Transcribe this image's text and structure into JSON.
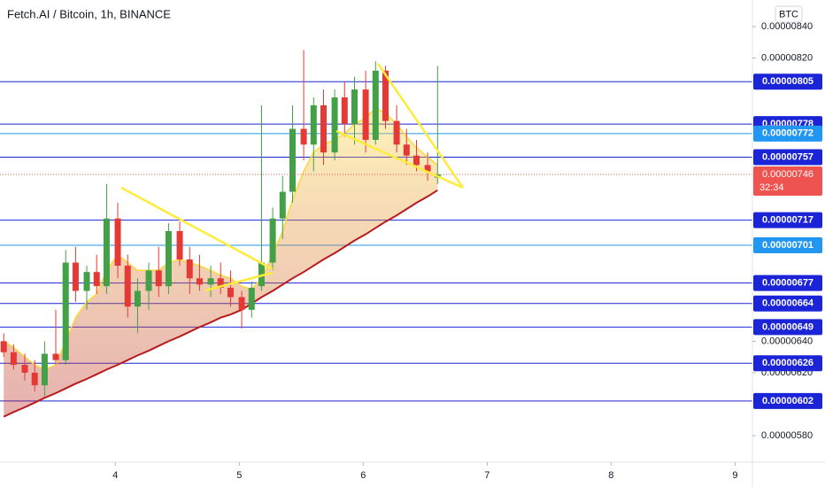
{
  "chart_data": {
    "type": "candlestick",
    "title": "Fetch.AI / Bitcoin, 1h, BINANCE",
    "currency": "BTC",
    "up_color": "#43a047",
    "down_color": "#e53935",
    "x": [
      3.1,
      3.18,
      3.27,
      3.35,
      3.43,
      3.52,
      3.6,
      3.68,
      3.77,
      3.85,
      3.93,
      4.02,
      4.1,
      4.18,
      4.27,
      4.35,
      4.43,
      4.52,
      4.6,
      4.68,
      4.77,
      4.85,
      4.93,
      5.02,
      5.1,
      5.18,
      5.27,
      5.35,
      5.43,
      5.52,
      5.6,
      5.68,
      5.77,
      5.85,
      5.93,
      6.02,
      6.1,
      6.18,
      6.27,
      6.35,
      6.43,
      6.52,
      6.6
    ],
    "open": [
      6.4e-06,
      6.33e-06,
      6.25e-06,
      6.2e-06,
      6.12e-06,
      6.32e-06,
      6.28e-06,
      6.9e-06,
      6.72e-06,
      6.84e-06,
      6.75e-06,
      7.18e-06,
      6.88e-06,
      6.62e-06,
      6.72e-06,
      6.85e-06,
      6.75e-06,
      7.1e-06,
      6.92e-06,
      6.8e-06,
      6.76e-06,
      6.8e-06,
      6.74e-06,
      6.68e-06,
      6.6e-06,
      6.75e-06,
      6.9e-06,
      7.18e-06,
      7.35e-06,
      7.75e-06,
      7.65e-06,
      7.9e-06,
      7.6e-06,
      7.95e-06,
      7.78e-06,
      8e-06,
      7.68e-06,
      8.12e-06,
      7.8e-06,
      7.65e-06,
      7.58e-06,
      7.52e-06,
      7.44e-06
    ],
    "high": [
      6.45e-06,
      6.38e-06,
      6.32e-06,
      6.28e-06,
      6.4e-06,
      6.6e-06,
      6.98e-06,
      7e-06,
      6.88e-06,
      6.95e-06,
      7.4e-06,
      7.28e-06,
      6.95e-06,
      6.8e-06,
      6.9e-06,
      7e-06,
      7.15e-06,
      7.16e-06,
      7e-06,
      6.95e-06,
      6.88e-06,
      6.9e-06,
      6.85e-06,
      6.72e-06,
      6.78e-06,
      7.9e-06,
      7.25e-06,
      7.45e-06,
      7.9e-06,
      8.25e-06,
      7.95e-06,
      8e-06,
      8e-06,
      8.05e-06,
      8.08e-06,
      8.12e-06,
      8.18e-06,
      8.15e-06,
      7.9e-06,
      7.75e-06,
      7.68e-06,
      7.6e-06,
      8.15e-06
    ],
    "low": [
      6.3e-06,
      6.22e-06,
      6.15e-06,
      6.08e-06,
      6.05e-06,
      6.25e-06,
      6.25e-06,
      6.65e-06,
      6.6e-06,
      6.7e-06,
      6.7e-06,
      6.8e-06,
      6.55e-06,
      6.45e-06,
      6.6e-06,
      6.68e-06,
      6.7e-06,
      6.88e-06,
      6.7e-06,
      6.72e-06,
      6.68e-06,
      6.7e-06,
      6.62e-06,
      6.48e-06,
      6.55e-06,
      6.72e-06,
      6.85e-06,
      7.05e-06,
      7.28e-06,
      7.55e-06,
      7.48e-06,
      7.52e-06,
      7.55e-06,
      7.7e-06,
      7.65e-06,
      7.6e-06,
      7.65e-06,
      7.75e-06,
      7.6e-06,
      7.52e-06,
      7.48e-06,
      7.42e-06,
      7.4e-06
    ],
    "close": [
      6.33e-06,
      6.25e-06,
      6.2e-06,
      6.12e-06,
      6.32e-06,
      6.28e-06,
      6.9e-06,
      6.72e-06,
      6.84e-06,
      6.75e-06,
      7.18e-06,
      6.88e-06,
      6.62e-06,
      6.72e-06,
      6.85e-06,
      6.75e-06,
      7.1e-06,
      6.92e-06,
      6.8e-06,
      6.76e-06,
      6.8e-06,
      6.74e-06,
      6.68e-06,
      6.6e-06,
      6.74e-06,
      6.9e-06,
      7.18e-06,
      7.35e-06,
      7.75e-06,
      7.65e-06,
      7.9e-06,
      7.6e-06,
      7.95e-06,
      7.78e-06,
      8e-06,
      7.68e-06,
      8.12e-06,
      7.8e-06,
      7.65e-06,
      7.58e-06,
      7.52e-06,
      7.48e-06,
      7.46e-06
    ],
    "ribbon_upper": [
      6.4e-06,
      6.36e-06,
      6.3e-06,
      6.25e-06,
      6.22e-06,
      6.25e-06,
      6.4e-06,
      6.55e-06,
      6.65e-06,
      6.7e-06,
      6.85e-06,
      6.95e-06,
      6.9e-06,
      6.85e-06,
      6.85e-06,
      6.85e-06,
      6.9e-06,
      6.92e-06,
      6.9e-06,
      6.88e-06,
      6.85e-06,
      6.82e-06,
      6.8e-06,
      6.75e-06,
      6.73e-06,
      6.8e-06,
      6.95e-06,
      7.1e-06,
      7.3e-06,
      7.48e-06,
      7.6e-06,
      7.65e-06,
      7.68e-06,
      7.72e-06,
      7.78e-06,
      7.82e-06,
      7.88e-06,
      7.85e-06,
      7.78e-06,
      7.7e-06,
      7.63e-06,
      7.57e-06,
      7.52e-06
    ],
    "ribbon_upper_color": "#fdd835",
    "ribbon_lower": [
      5.92e-06,
      5.95e-06,
      5.98e-06,
      6.01e-06,
      6.04e-06,
      6.07e-06,
      6.1e-06,
      6.13e-06,
      6.16e-06,
      6.19e-06,
      6.22e-06,
      6.25e-06,
      6.28e-06,
      6.31e-06,
      6.34e-06,
      6.37e-06,
      6.4e-06,
      6.43e-06,
      6.46e-06,
      6.49e-06,
      6.52e-06,
      6.55e-06,
      6.57e-06,
      6.6e-06,
      6.64e-06,
      6.68e-06,
      6.72e-06,
      6.76e-06,
      6.8e-06,
      6.84e-06,
      6.88e-06,
      6.92e-06,
      6.96e-06,
      7e-06,
      7.04e-06,
      7.08e-06,
      7.12e-06,
      7.16e-06,
      7.2e-06,
      7.24e-06,
      7.28e-06,
      7.32e-06,
      7.36e-06
    ],
    "ribbon_lower_color": "#b71c1c",
    "xlim": [
      3.07,
      9.14
    ],
    "xticks": [
      4,
      5,
      6,
      7,
      8,
      9
    ],
    "ylim": [
      5.631e-06,
      8.569e-06
    ],
    "yticks": [
      {
        "value": 8.4e-06,
        "label": "0.00000840"
      },
      {
        "value": 8.2e-06,
        "label": "0.00000820"
      },
      {
        "value": 6.4e-06,
        "label": "0.00000640"
      },
      {
        "value": 6.2e-06,
        "label": "0.00000620"
      },
      {
        "value": 5.8e-06,
        "label": "0.00000580"
      }
    ],
    "levels": [
      {
        "value": 8.05e-06,
        "label": "0.00000805",
        "color": "#1c24d8"
      },
      {
        "value": 7.78e-06,
        "label": "0.00000778",
        "color": "#1c24d8"
      },
      {
        "value": 7.72e-06,
        "label": "0.00000772",
        "color": "#2196f3"
      },
      {
        "value": 7.57e-06,
        "label": "0.00000757",
        "color": "#1c24d8"
      },
      {
        "value": 7.17e-06,
        "label": "0.00000717",
        "color": "#1c24d8"
      },
      {
        "value": 7.01e-06,
        "label": "0.00000701",
        "color": "#2196f3"
      },
      {
        "value": 6.77e-06,
        "label": "0.00000677",
        "color": "#1c24d8"
      },
      {
        "value": 6.64e-06,
        "label": "0.00000664",
        "color": "#1c24d8"
      },
      {
        "value": 6.49e-06,
        "label": "0.00000649",
        "color": "#1c24d8"
      },
      {
        "value": 6.26e-06,
        "label": "0.00000626",
        "color": "#1c24d8"
      },
      {
        "value": 6.02e-06,
        "label": "0.00000602",
        "color": "#1c24d8"
      }
    ],
    "last_price": {
      "value": 7.46e-06,
      "label": "0.00000746",
      "countdown": "32:34",
      "color": "#ef5350"
    }
  }
}
